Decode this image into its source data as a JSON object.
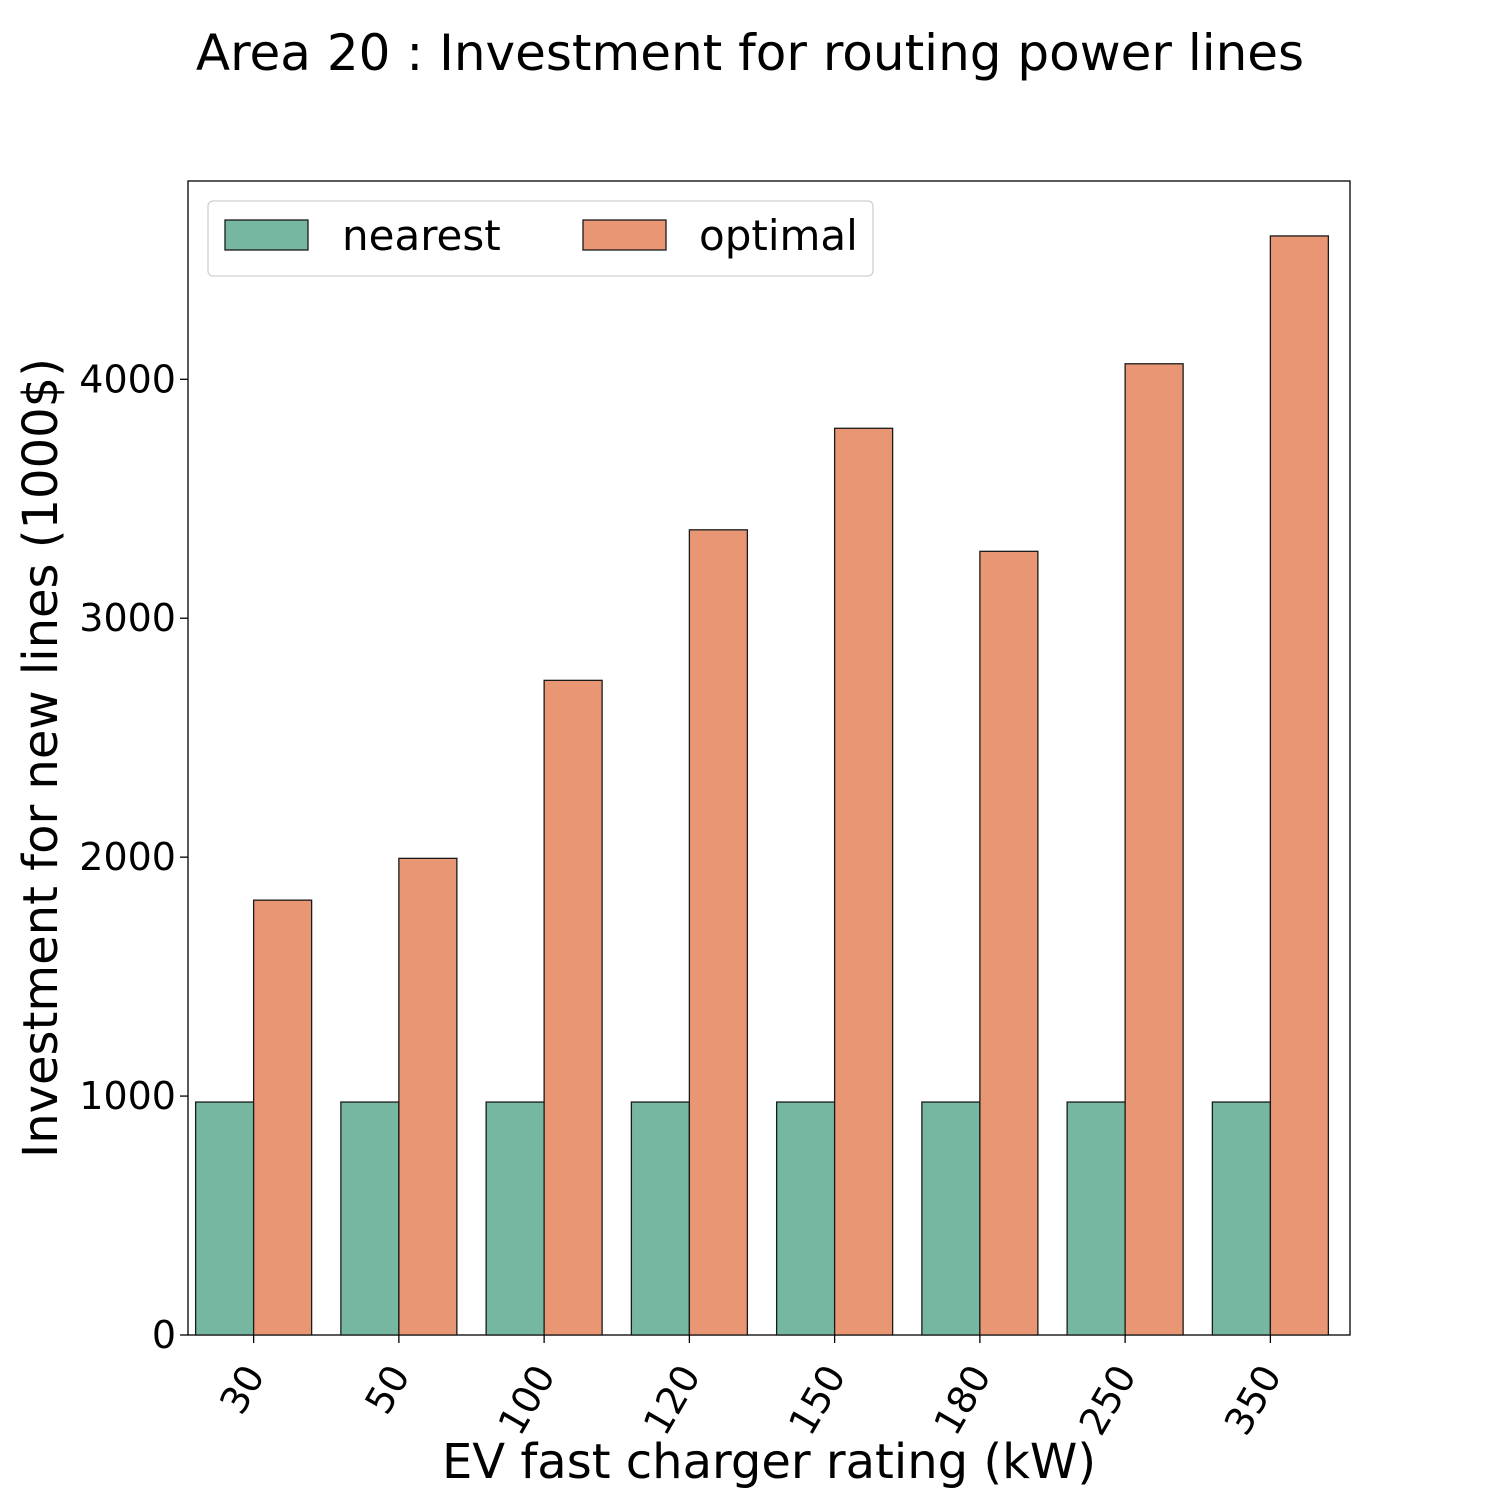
{
  "chart_data": {
    "type": "bar",
    "title": "Area 20 : Investment for routing power lines",
    "xlabel": "EV fast charger rating (kW)",
    "ylabel": "Investment for new lines (1000$)",
    "categories": [
      "30",
      "50",
      "100",
      "120",
      "150",
      "180",
      "250",
      "350"
    ],
    "series": [
      {
        "name": "nearest",
        "color": "#76b7a1",
        "values": [
          975,
          975,
          975,
          975,
          975,
          975,
          975,
          975
        ]
      },
      {
        "name": "optimal",
        "color": "#e99675",
        "values": [
          1820,
          1995,
          2740,
          3370,
          3795,
          3280,
          4065,
          4600
        ]
      }
    ],
    "ylim": [
      0,
      4830
    ],
    "yticks": [
      0,
      1000,
      2000,
      3000,
      4000
    ],
    "grid": false,
    "legend_position": "top-left"
  }
}
